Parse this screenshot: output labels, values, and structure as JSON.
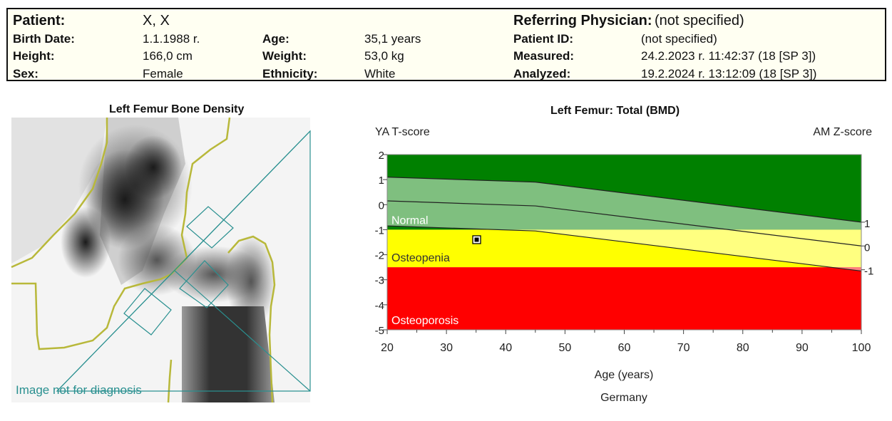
{
  "patient": {
    "patient_label": "Patient:",
    "patient_value": "X, X",
    "birth_label": "Birth Date:",
    "birth_value": "1.1.1988 r.",
    "age_label": "Age:",
    "age_value": "35,1 years",
    "height_label": "Height:",
    "height_value": "166,0 cm",
    "weight_label": "Weight:",
    "weight_value": "53,0 kg",
    "sex_label": "Sex:",
    "sex_value": "Female",
    "ethnicity_label": "Ethnicity:",
    "ethnicity_value": "White",
    "physician_label": "Referring Physician:",
    "physician_value": "(not specified)",
    "id_label": "Patient ID:",
    "id_value": "(not specified)",
    "measured_label": "Measured:",
    "measured_value": "24.2.2023 r.  11:42:37 (18  [SP 3])",
    "analyzed_label": "Analyzed:",
    "analyzed_value": "19.2.2024 r.  13:12:09 (18  [SP 3])"
  },
  "image_panel": {
    "title": "Left Femur Bone Density",
    "watermark": "Image not for diagnosis"
  },
  "chart_data": {
    "type": "area",
    "title": "Left Femur: Total (BMD)",
    "left_axis_label": "YA T-score",
    "right_axis_label": "AM Z-score",
    "xlabel": "Age (years)",
    "reference_population": "Germany",
    "xlim": [
      20,
      100
    ],
    "ylim": [
      -5,
      2
    ],
    "x_ticks": [
      20,
      30,
      40,
      50,
      60,
      70,
      80,
      90,
      100
    ],
    "y_ticks": [
      2,
      1,
      0,
      -1,
      -2,
      -3,
      -4,
      -5
    ],
    "zones": [
      {
        "name": "Normal",
        "from": -1,
        "to": 2,
        "color": "#008000"
      },
      {
        "name": "Osteopenia",
        "from": -2.5,
        "to": -1,
        "color": "#ffff00"
      },
      {
        "name": "Osteoporosis",
        "from": -5,
        "to": -2.5,
        "color": "#ff0000"
      }
    ],
    "reference_curve": {
      "x": [
        20,
        45,
        100
      ],
      "mean": [
        0.15,
        -0.05,
        -1.65
      ],
      "upper": [
        1.1,
        0.9,
        -0.7
      ],
      "lower": [
        -0.85,
        -1.05,
        -2.65
      ]
    },
    "right_axis_ticks": [
      1,
      0,
      -1
    ],
    "patient_point": {
      "age": 35.1,
      "t_score": -1.4
    },
    "colors": {
      "normal": "#008000",
      "normal_band": "#7fbf7f",
      "osteopenia": "#ffff00",
      "osteopenia_band": "#ffff80",
      "osteoporosis": "#ff0000",
      "osteoporosis_band": "#ff8080",
      "overlay": "#2a9090"
    }
  }
}
